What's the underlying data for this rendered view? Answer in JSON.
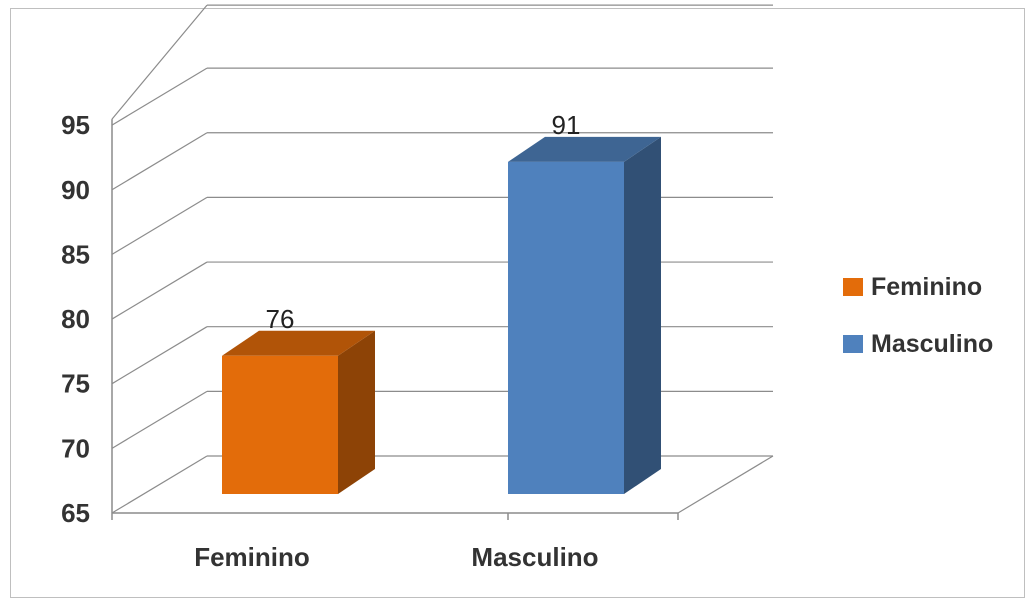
{
  "chart_data": {
    "type": "bar",
    "categories": [
      "Feminino",
      "Masculino"
    ],
    "series": [
      {
        "name": "Feminino",
        "values": [
          76,
          null
        ],
        "color": "#E36C0A"
      },
      {
        "name": "Masculino",
        "values": [
          null,
          91
        ],
        "color": "#4F81BD"
      }
    ],
    "ylim": [
      65,
      95
    ],
    "yticks": [
      "65",
      "70",
      "75",
      "80",
      "85",
      "90",
      "95"
    ],
    "data_labels": [
      "76",
      "91"
    ],
    "grid": true,
    "legend_position": "right",
    "style_3d": true
  }
}
